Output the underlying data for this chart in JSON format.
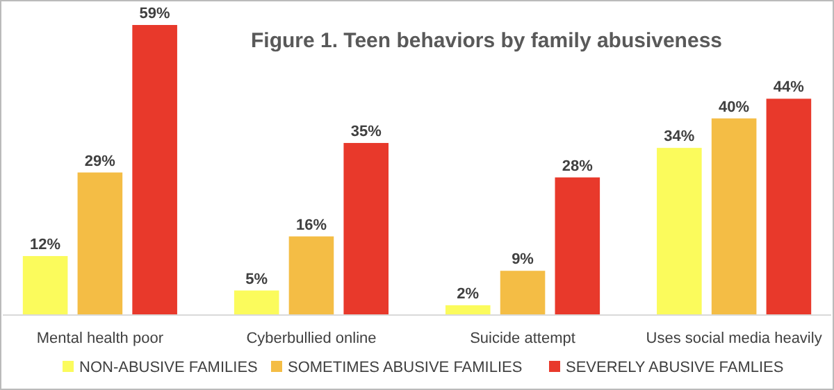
{
  "chart_data": {
    "type": "bar",
    "title": "Figure 1. Teen behaviors by family abusiveness",
    "categories": [
      "Mental health poor",
      "Cyberbullied online",
      "Suicide attempt",
      "Uses social media heavily"
    ],
    "series": [
      {
        "name": "NON-ABUSIVE FAMILIES",
        "color": "#fbfb5c",
        "values": [
          12,
          5,
          2,
          34
        ],
        "value_labels": [
          "12%",
          "5%",
          "2%",
          "34%"
        ]
      },
      {
        "name": "SOMETIMES ABUSIVE FAMILIES",
        "color": "#f4bd45",
        "values": [
          29,
          16,
          9,
          40
        ],
        "value_labels": [
          "29%",
          "16%",
          "9%",
          "40%"
        ]
      },
      {
        "name": "SEVERELY ABUSIVE FAMLIES",
        "color": "#e8392b",
        "values": [
          59,
          35,
          28,
          44
        ],
        "value_labels": [
          "59%",
          "35%",
          "28%",
          "44%"
        ]
      }
    ],
    "legend": "bottom"
  }
}
